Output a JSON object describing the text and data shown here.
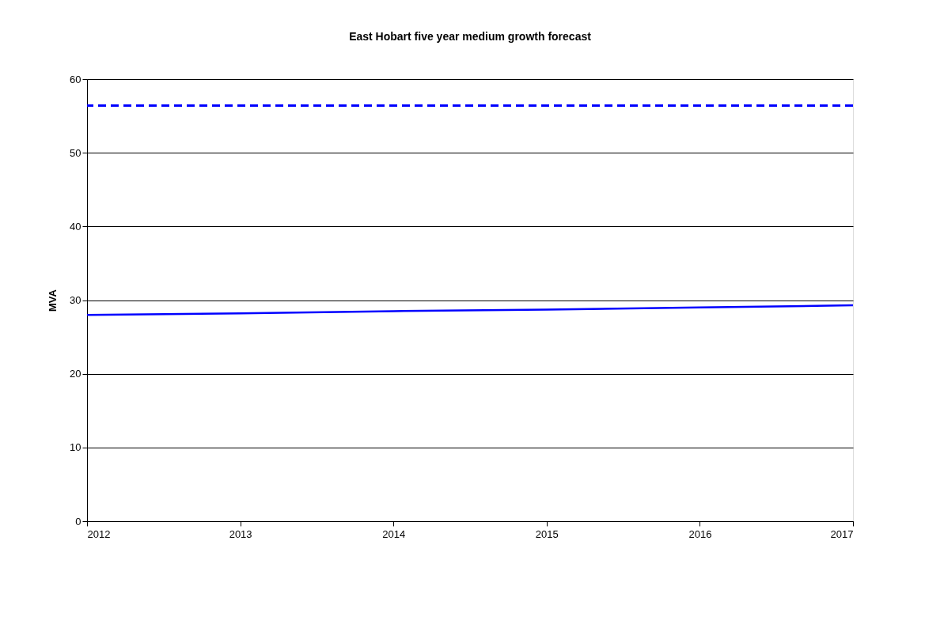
{
  "chart_data": {
    "type": "line",
    "title": "East Hobart five year medium growth forecast",
    "ylabel": "MVA",
    "x": [
      2012,
      2013,
      2014,
      2015,
      2016,
      2017
    ],
    "series": [
      {
        "color": "#0000ff",
        "values": [
          28.0,
          28.2,
          28.5,
          28.7,
          29.0,
          29.3
        ]
      }
    ],
    "ref_lines": [
      {
        "axis": "y",
        "value": 56.4,
        "color": "#0000ff",
        "line_style": "dashed"
      }
    ],
    "xlim": [
      2012,
      2017
    ],
    "xticks": [
      2012,
      2013,
      2014,
      2015,
      2016,
      2017
    ],
    "ylim": [
      0,
      60
    ],
    "yticks": [
      0,
      10,
      20,
      30,
      40,
      50,
      60
    ],
    "grid": "y",
    "legend": false,
    "marker": "none",
    "line_style": "solid"
  }
}
